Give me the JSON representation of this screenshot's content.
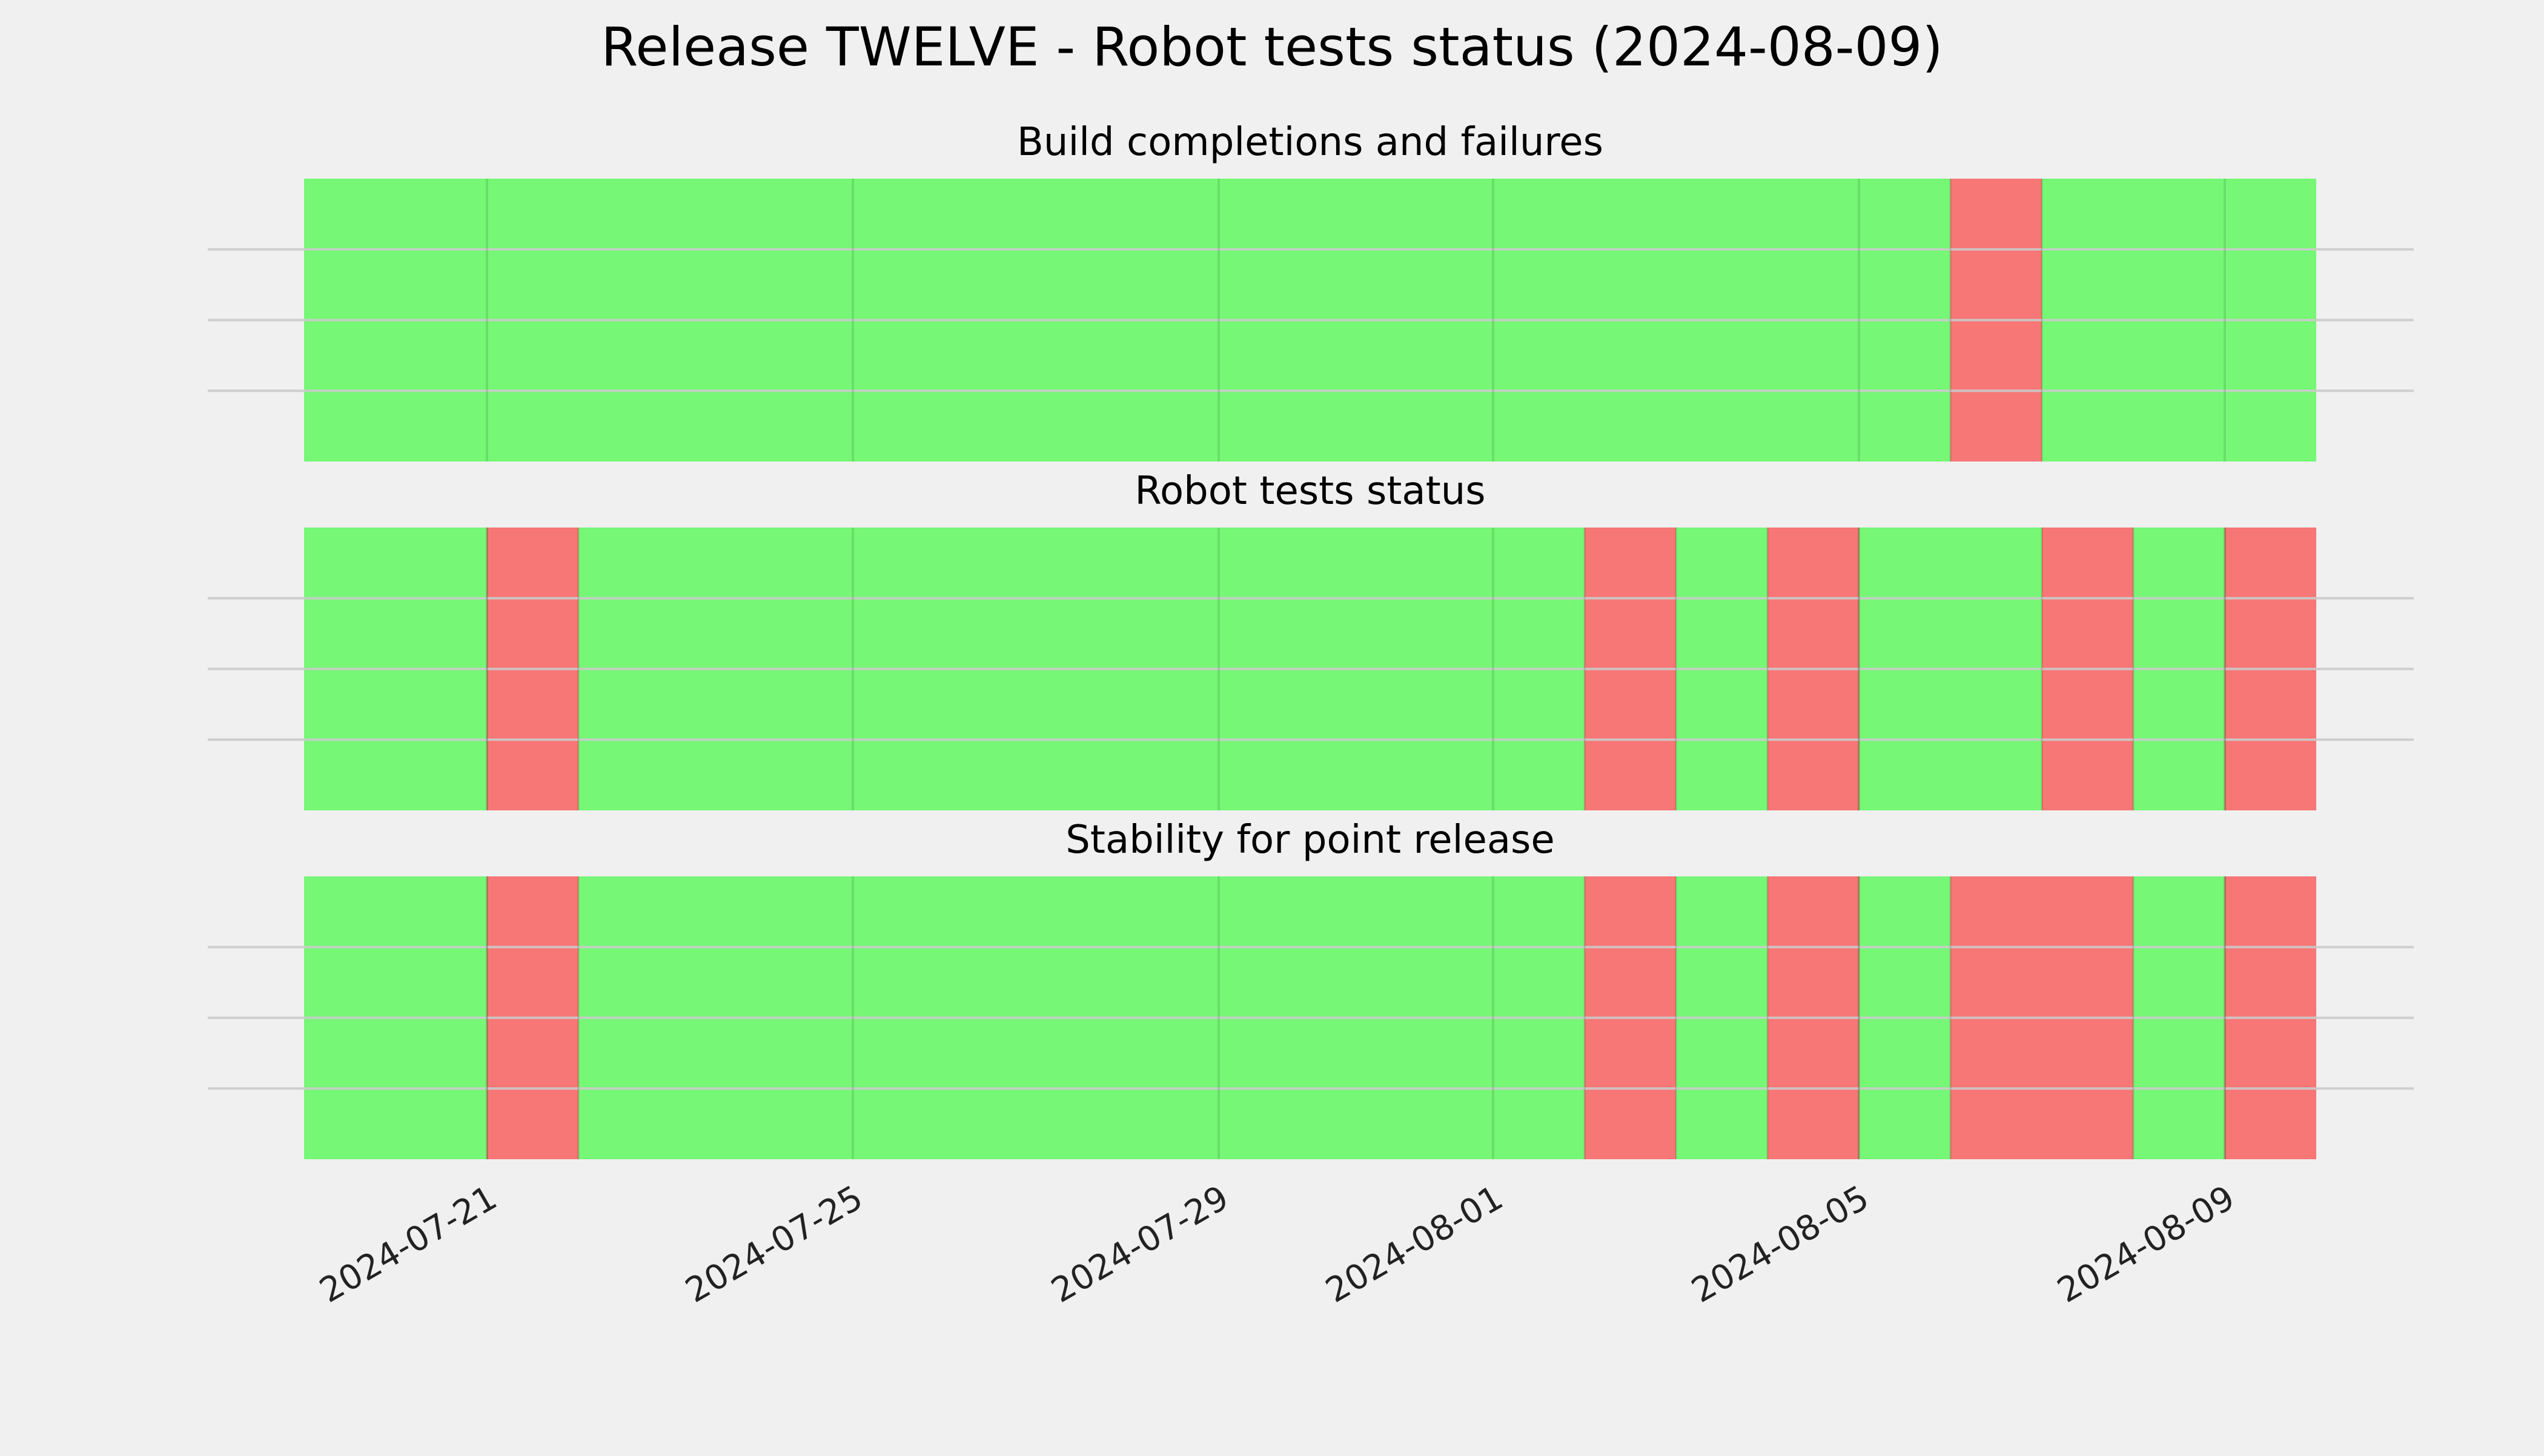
{
  "figure_title": "Release TWELVE - Robot tests status (2024-08-09)",
  "colors": {
    "background": "#f0f0f0",
    "pass": "#76f776",
    "fail": "#f77676",
    "gridline": "#cbcbcb",
    "text": "#000000"
  },
  "chart_data": [
    {
      "type": "timeline",
      "title": "Build completions and failures",
      "x_range": [
        "2024-07-19",
        "2024-08-10"
      ],
      "grid": true,
      "x_ticks": [
        "2024-07-21",
        "2024-07-25",
        "2024-07-29",
        "2024-08-01",
        "2024-08-05",
        "2024-08-09"
      ],
      "segments": [
        {
          "start": "2024-07-19",
          "end": "2024-08-06",
          "status": "pass"
        },
        {
          "start": "2024-08-06",
          "end": "2024-08-07",
          "status": "fail"
        },
        {
          "start": "2024-08-07",
          "end": "2024-08-10",
          "status": "pass"
        }
      ]
    },
    {
      "type": "timeline",
      "title": "Robot tests status",
      "x_range": [
        "2024-07-19",
        "2024-08-10"
      ],
      "grid": true,
      "x_ticks": [
        "2024-07-21",
        "2024-07-25",
        "2024-07-29",
        "2024-08-01",
        "2024-08-05",
        "2024-08-09"
      ],
      "segments": [
        {
          "start": "2024-07-19",
          "end": "2024-07-21",
          "status": "pass"
        },
        {
          "start": "2024-07-21",
          "end": "2024-07-22",
          "status": "fail"
        },
        {
          "start": "2024-07-22",
          "end": "2024-08-02",
          "status": "pass"
        },
        {
          "start": "2024-08-02",
          "end": "2024-08-03",
          "status": "fail"
        },
        {
          "start": "2024-08-03",
          "end": "2024-08-04",
          "status": "pass"
        },
        {
          "start": "2024-08-04",
          "end": "2024-08-05",
          "status": "fail"
        },
        {
          "start": "2024-08-05",
          "end": "2024-08-07",
          "status": "pass"
        },
        {
          "start": "2024-08-07",
          "end": "2024-08-08",
          "status": "fail"
        },
        {
          "start": "2024-08-08",
          "end": "2024-08-09",
          "status": "pass"
        },
        {
          "start": "2024-08-09",
          "end": "2024-08-10",
          "status": "fail"
        }
      ]
    },
    {
      "type": "timeline",
      "title": "Stability for point release",
      "x_range": [
        "2024-07-19",
        "2024-08-10"
      ],
      "grid": true,
      "x_ticks": [
        "2024-07-21",
        "2024-07-25",
        "2024-07-29",
        "2024-08-01",
        "2024-08-05",
        "2024-08-09"
      ],
      "segments": [
        {
          "start": "2024-07-19",
          "end": "2024-07-21",
          "status": "pass"
        },
        {
          "start": "2024-07-21",
          "end": "2024-07-22",
          "status": "fail"
        },
        {
          "start": "2024-07-22",
          "end": "2024-08-02",
          "status": "pass"
        },
        {
          "start": "2024-08-02",
          "end": "2024-08-03",
          "status": "fail"
        },
        {
          "start": "2024-08-03",
          "end": "2024-08-04",
          "status": "pass"
        },
        {
          "start": "2024-08-04",
          "end": "2024-08-05",
          "status": "fail"
        },
        {
          "start": "2024-08-05",
          "end": "2024-08-06",
          "status": "pass"
        },
        {
          "start": "2024-08-06",
          "end": "2024-08-08",
          "status": "fail"
        },
        {
          "start": "2024-08-08",
          "end": "2024-08-09",
          "status": "pass"
        },
        {
          "start": "2024-08-09",
          "end": "2024-08-10",
          "status": "fail"
        }
      ]
    }
  ]
}
